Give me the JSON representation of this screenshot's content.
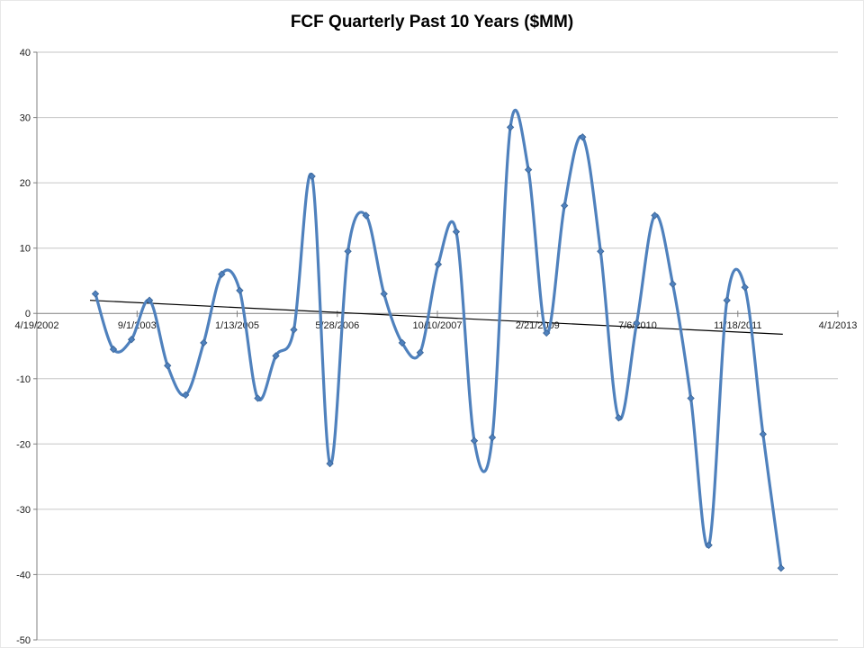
{
  "chart_data": {
    "type": "line",
    "title": "FCF Quarterly Past 10 Years ($MM)",
    "xlabel": "",
    "ylabel": "",
    "ylim": [
      -50,
      40
    ],
    "y_ticks": [
      40,
      30,
      20,
      10,
      0,
      -10,
      -20,
      -30,
      -40,
      -50
    ],
    "x_tick_labels": [
      "4/19/2002",
      "9/1/2003",
      "1/13/2005",
      "5/28/2006",
      "10/10/2007",
      "2/21/2009",
      "7/6/2010",
      "11/18/2011",
      "4/1/2013"
    ],
    "grid": true,
    "legend_position": "none",
    "x_start_frac": 0.073,
    "x_end_frac": 0.929,
    "style": {
      "grid_color": "#c6c6c6",
      "axis_color": "#808080",
      "label_color": "#1a1a1a",
      "tick_font_size": 11
    },
    "series": [
      {
        "name": "FCF ($MM)",
        "color": "#4f81bd",
        "marker": "diamond",
        "marker_edge": "#3a6496",
        "smooth": true,
        "values": [
          3,
          -5.5,
          -4,
          2,
          -8,
          -12.5,
          -4.5,
          6,
          3.5,
          -13,
          -6.5,
          -2.5,
          21,
          -23,
          9.5,
          15,
          3,
          -4.5,
          -6,
          7.5,
          12.5,
          -19.5,
          -19,
          28.5,
          22,
          -3,
          16.5,
          27,
          9.5,
          -16,
          -1.5,
          15,
          4.5,
          -13,
          -35.5,
          2,
          4,
          -18.5,
          -39
        ]
      }
    ],
    "trendline": {
      "name": "linear-trendline",
      "color": "#000000",
      "start_value": 2,
      "end_value": -3.2
    }
  }
}
